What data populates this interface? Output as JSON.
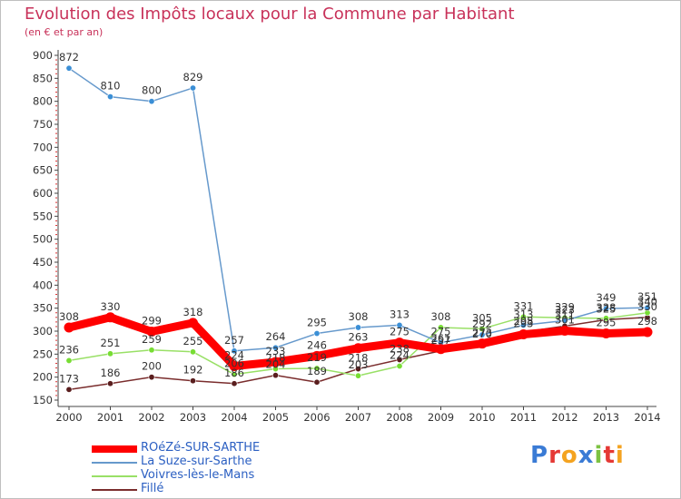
{
  "header": {
    "title": "Evolution des Impôts locaux pour la Commune par Habitant",
    "subtitle": "(en € et par an)"
  },
  "chart_data": {
    "type": "line",
    "title": "Evolution des Impôts locaux pour la Commune par Habitant",
    "subtitle": "(en € et par an)",
    "xlabel": "",
    "ylabel": "",
    "categories": [
      "2000",
      "2001",
      "2002",
      "2003",
      "2004",
      "2005",
      "2006",
      "2007",
      "2008",
      "2009",
      "2010",
      "2011",
      "2012",
      "2013",
      "2014"
    ],
    "ylim": [
      150,
      900
    ],
    "yticks": [
      150,
      200,
      250,
      300,
      350,
      400,
      450,
      500,
      550,
      600,
      650,
      700,
      750,
      800,
      850,
      900
    ],
    "grid": false,
    "legend_position": "bottom-left",
    "series": [
      {
        "name": "ROéZé-SUR-SARTHE",
        "color": "#ff0000",
        "marker_color": "#ff0000",
        "values": [
          308,
          330,
          299,
          318,
          224,
          233,
          246,
          263,
          275,
          261,
          273,
          293,
          301,
          295,
          298
        ],
        "labels": [
          "308",
          "330",
          "299",
          "318",
          "224",
          "233",
          "246",
          "263",
          "275",
          "261",
          "273",
          "293",
          "301",
          "295",
          "298"
        ]
      },
      {
        "name": "La Suze-sur-Sarthe",
        "color": "#6699cc",
        "marker_color": "#3b8fd6",
        "values": [
          872,
          810,
          800,
          829,
          257,
          264,
          295,
          308,
          313,
          275,
          292,
          313,
          323,
          349,
          351
        ],
        "labels": [
          "872",
          "810",
          "800",
          "829",
          "257",
          "264",
          "295",
          "308",
          "313",
          "275",
          "292",
          "313",
          "323",
          "349",
          "351"
        ]
      },
      {
        "name": "Voivres-lès-le-Mans",
        "color": "#99e066",
        "marker_color": "#77dd33",
        "values": [
          236,
          251,
          259,
          255,
          206,
          218,
          219,
          203,
          224,
          308,
          305,
          331,
          329,
          328,
          340
        ],
        "labels": [
          "236",
          "251",
          "259",
          "255",
          "206",
          "218",
          "219",
          "203",
          "224",
          "308",
          "305",
          "331",
          "329",
          "328",
          "340"
        ]
      },
      {
        "name": "Fillé",
        "color": "#7a2d2d",
        "marker_color": "#5a1e1e",
        "values": [
          173,
          186,
          200,
          192,
          186,
          204,
          189,
          218,
          238,
          257,
          270,
          298,
          311,
          325,
          330
        ],
        "labels": [
          "173",
          "186",
          "200",
          "192",
          "186",
          "204",
          "189",
          "218",
          "238",
          "257",
          "270",
          "298",
          "311",
          "325",
          "330"
        ]
      }
    ]
  },
  "logo": {
    "letters": [
      "P",
      "r",
      "o",
      "x",
      "i",
      "t",
      "i"
    ],
    "colors": [
      "#3a7bd5",
      "#e53935",
      "#f4a320",
      "#3a7bd5",
      "#7cc242",
      "#e53935",
      "#f4a320"
    ]
  }
}
